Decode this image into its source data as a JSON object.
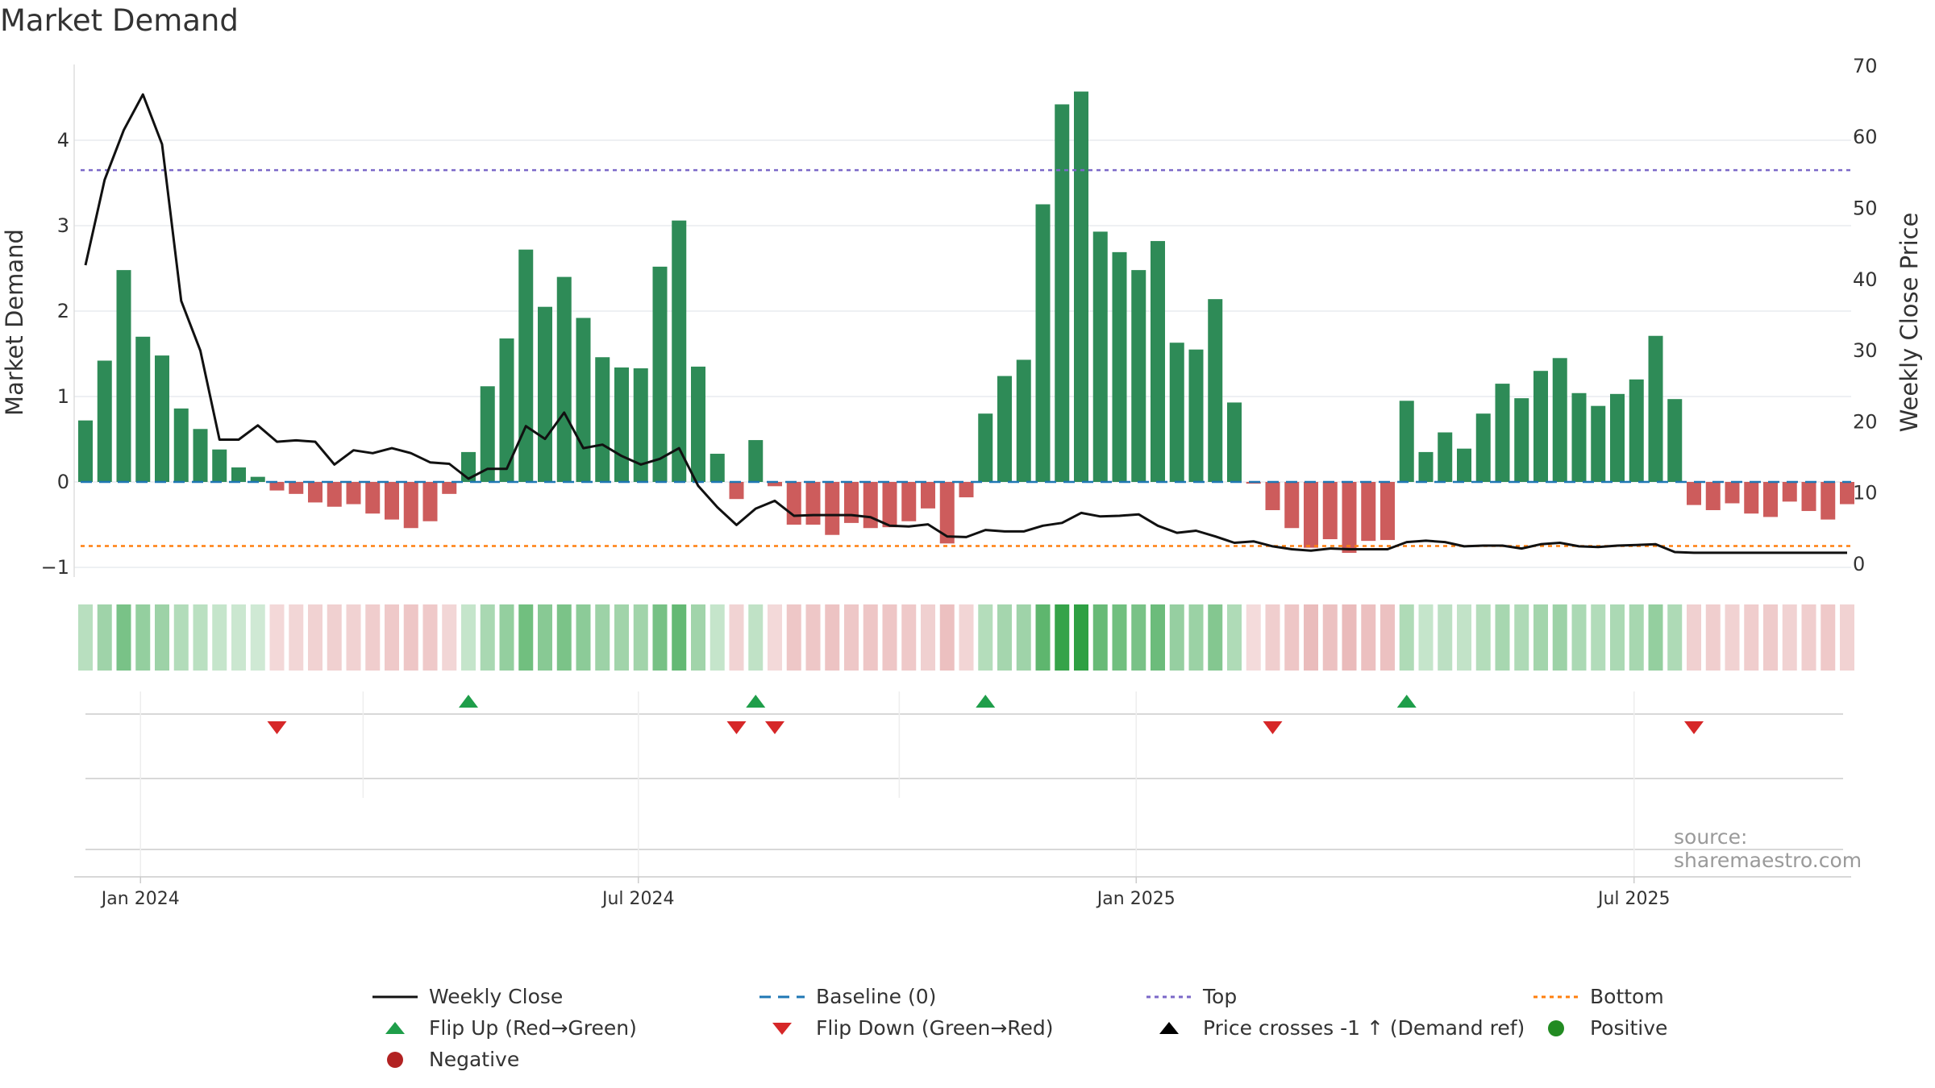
{
  "title": "Market Demand",
  "source": "source: sharemaestro.com",
  "colors": {
    "positive": "#2e8b57",
    "negative": "#cd5c5c",
    "price_line": "#111111",
    "baseline": "#1f77b4",
    "top": "#7b68c8",
    "bottom": "#ff7f0e",
    "flip_up": "#1f9e4a",
    "flip_down": "#d62728",
    "grid": "#e8ecef"
  },
  "chart_data": {
    "type": "bar",
    "title": "Market Demand",
    "ylabel_left": "Market Demand",
    "ylabel_right": "Weekly Close Price",
    "ylim_left": [
      -1.1,
      4.8
    ],
    "ylim_right": [
      0,
      70
    ],
    "yticks_left": [
      "−1",
      "0",
      "1",
      "2",
      "3",
      "4"
    ],
    "yticks_right": [
      "0",
      "10",
      "20",
      "30",
      "40",
      "50",
      "60",
      "70"
    ],
    "top_level": 3.65,
    "bottom_level": -0.75,
    "xtick_labels": [
      "Jan 2024",
      "Jul 2024",
      "Jan 2025",
      "Jul 2025"
    ],
    "xtick_week_index": [
      3,
      29,
      55,
      81
    ],
    "demand": [
      0.72,
      1.42,
      2.48,
      1.7,
      1.48,
      0.86,
      0.62,
      0.38,
      0.17,
      0.06,
      -0.1,
      -0.14,
      -0.24,
      -0.29,
      -0.26,
      -0.37,
      -0.44,
      -0.54,
      -0.46,
      -0.14,
      0.35,
      1.12,
      1.68,
      2.72,
      2.05,
      2.4,
      1.92,
      1.46,
      1.34,
      1.33,
      2.52,
      3.06,
      1.35,
      0.33,
      -0.2,
      0.49,
      -0.05,
      -0.5,
      -0.5,
      -0.62,
      -0.48,
      -0.54,
      -0.53,
      -0.46,
      -0.31,
      -0.72,
      -0.18,
      0.8,
      1.24,
      1.43,
      3.25,
      4.42,
      4.57,
      2.93,
      2.69,
      2.48,
      2.82,
      1.63,
      1.55,
      2.14,
      0.93,
      -0.02,
      -0.33,
      -0.54,
      -0.77,
      -0.67,
      -0.83,
      -0.69,
      -0.68,
      0.95,
      0.35,
      0.58,
      0.39,
      0.8,
      1.15,
      0.98,
      1.3,
      1.45,
      1.04,
      0.89,
      1.03,
      1.2,
      1.71,
      0.97,
      -0.27,
      -0.33,
      -0.25,
      -0.37,
      -0.41,
      -0.23,
      -0.34,
      -0.44,
      -0.26
    ],
    "weekly_close": [
      42,
      54,
      61,
      66,
      59,
      37,
      30,
      17.5,
      17.5,
      19.5,
      17.2,
      17.4,
      17.2,
      14,
      16,
      15.6,
      16.3,
      15.6,
      14.3,
      14.1,
      12,
      13.4,
      13.4,
      19.4,
      17.6,
      21.3,
      16.3,
      16.8,
      15.2,
      14,
      14.8,
      16.3,
      11,
      8,
      5.5,
      7.8,
      8.9,
      6.8,
      6.9,
      6.9,
      6.9,
      6.6,
      5.4,
      5.3,
      5.6,
      3.9,
      3.8,
      4.8,
      4.6,
      4.6,
      5.4,
      5.8,
      7.2,
      6.7,
      6.8,
      7.0,
      5.4,
      4.4,
      4.7,
      3.9,
      3.0,
      3.2,
      2.5,
      2.1,
      1.9,
      2.2,
      2.1,
      2.1,
      2.1,
      3.1,
      3.3,
      3.1,
      2.5,
      2.6,
      2.6,
      2.2,
      2.8,
      3.0,
      2.5,
      2.4,
      2.6,
      2.7,
      2.8,
      1.7,
      1.6,
      1.6,
      1.6,
      1.6,
      1.6,
      1.6,
      1.6,
      1.6,
      1.6
    ],
    "flip_up_weeks": [
      20,
      35,
      47,
      69
    ],
    "flip_down_weeks": [
      10,
      34,
      36,
      62,
      84
    ]
  },
  "legend": [
    {
      "label": "Weekly Close",
      "symbol": "line",
      "color": "#111111"
    },
    {
      "label": "Baseline (0)",
      "symbol": "dashed",
      "color": "#1f77b4"
    },
    {
      "label": "Top",
      "symbol": "dotted",
      "color": "#7b68c8"
    },
    {
      "label": "Bottom",
      "symbol": "dotted",
      "color": "#ff7f0e"
    },
    {
      "label": "Flip Up (Red→Green)",
      "symbol": "tri-up",
      "color": "#1f9e4a"
    },
    {
      "label": "Flip Down (Green→Red)",
      "symbol": "tri-down",
      "color": "#d62728"
    },
    {
      "label": "Price crosses -1 ↑ (Demand ref)",
      "symbol": "tri-up",
      "color": "#000000"
    },
    {
      "label": "Positive",
      "symbol": "dot",
      "color": "#228b22"
    },
    {
      "label": "Negative",
      "symbol": "dot",
      "color": "#b22222"
    }
  ]
}
